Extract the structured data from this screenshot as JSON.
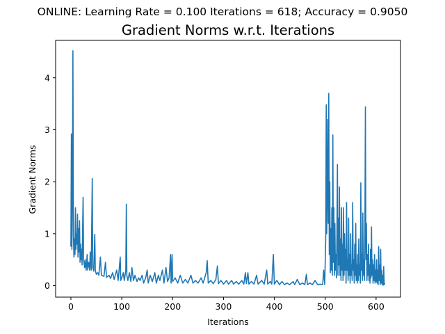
{
  "chart_data": {
    "type": "line",
    "suptitle": "ONLINE: Learning Rate = 0.100 Iterations = 618; Accuracy = 0.9050",
    "title": "Gradient Norms w.r.t. Iterations",
    "xlabel": "Iterations",
    "ylabel": "Gradient Norms",
    "xlim": [
      -30,
      648
    ],
    "ylim": [
      -0.22,
      4.72
    ],
    "xticks": [
      0,
      100,
      200,
      300,
      400,
      500,
      600
    ],
    "yticks": [
      0,
      1,
      2,
      3,
      4
    ],
    "grid": false,
    "color": "#1f77b4",
    "series": [
      {
        "points": [
          [
            0,
            0.75
          ],
          [
            1,
            2.92
          ],
          [
            2,
            0.7
          ],
          [
            3,
            1.85
          ],
          [
            4,
            4.52
          ],
          [
            5,
            0.98
          ],
          [
            6,
            0.55
          ],
          [
            7,
            0.9
          ],
          [
            8,
            0.6
          ],
          [
            9,
            1.5
          ],
          [
            10,
            0.7
          ],
          [
            11,
            1.0
          ],
          [
            12,
            0.8
          ],
          [
            13,
            1.38
          ],
          [
            14,
            0.55
          ],
          [
            15,
            1.1
          ],
          [
            16,
            0.65
          ],
          [
            17,
            1.25
          ],
          [
            18,
            0.45
          ],
          [
            19,
            0.8
          ],
          [
            20,
            0.5
          ],
          [
            21,
            0.7
          ],
          [
            22,
            0.4
          ],
          [
            24,
            1.7
          ],
          [
            25,
            0.5
          ],
          [
            27,
            0.35
          ],
          [
            28,
            0.5
          ],
          [
            30,
            0.3
          ],
          [
            32,
            0.6
          ],
          [
            33,
            0.3
          ],
          [
            35,
            0.45
          ],
          [
            37,
            0.3
          ],
          [
            38,
            0.65
          ],
          [
            40,
            0.3
          ],
          [
            42,
            2.06
          ],
          [
            43,
            0.35
          ],
          [
            45,
            0.28
          ],
          [
            47,
            0.99
          ],
          [
            48,
            0.3
          ],
          [
            50,
            0.22
          ],
          [
            53,
            0.25
          ],
          [
            55,
            0.2
          ],
          [
            58,
            0.55
          ],
          [
            60,
            0.2
          ],
          [
            65,
            0.18
          ],
          [
            68,
            0.45
          ],
          [
            70,
            0.16
          ],
          [
            75,
            0.2
          ],
          [
            78,
            0.14
          ],
          [
            82,
            0.25
          ],
          [
            85,
            0.12
          ],
          [
            90,
            0.3
          ],
          [
            93,
            0.1
          ],
          [
            97,
            0.55
          ],
          [
            98,
            0.1
          ],
          [
            100,
            0.15
          ],
          [
            103,
            0.25
          ],
          [
            105,
            0.1
          ],
          [
            108,
            0.3
          ],
          [
            109,
            1.57
          ],
          [
            110,
            0.2
          ],
          [
            112,
            0.1
          ],
          [
            115,
            0.25
          ],
          [
            118,
            0.08
          ],
          [
            120,
            0.35
          ],
          [
            123,
            0.1
          ],
          [
            126,
            0.2
          ],
          [
            130,
            0.08
          ],
          [
            133,
            0.15
          ],
          [
            136,
            0.1
          ],
          [
            140,
            0.2
          ],
          [
            143,
            0.05
          ],
          [
            147,
            0.15
          ],
          [
            150,
            0.3
          ],
          [
            152,
            0.05
          ],
          [
            156,
            0.2
          ],
          [
            160,
            0.08
          ],
          [
            165,
            0.25
          ],
          [
            168,
            0.05
          ],
          [
            172,
            0.2
          ],
          [
            175,
            0.1
          ],
          [
            180,
            0.3
          ],
          [
            183,
            0.05
          ],
          [
            187,
            0.35
          ],
          [
            190,
            0.08
          ],
          [
            193,
            0.15
          ],
          [
            196,
            0.6
          ],
          [
            197,
            0.05
          ],
          [
            199,
            0.6
          ],
          [
            200,
            0.08
          ],
          [
            205,
            0.15
          ],
          [
            210,
            0.05
          ],
          [
            215,
            0.2
          ],
          [
            220,
            0.05
          ],
          [
            225,
            0.12
          ],
          [
            230,
            0.05
          ],
          [
            236,
            0.2
          ],
          [
            240,
            0.05
          ],
          [
            245,
            0.1
          ],
          [
            250,
            0.05
          ],
          [
            256,
            0.15
          ],
          [
            260,
            0.05
          ],
          [
            266,
            0.25
          ],
          [
            268,
            0.48
          ],
          [
            270,
            0.05
          ],
          [
            275,
            0.1
          ],
          [
            280,
            0.04
          ],
          [
            285,
            0.12
          ],
          [
            288,
            0.38
          ],
          [
            290,
            0.04
          ],
          [
            295,
            0.1
          ],
          [
            300,
            0.03
          ],
          [
            306,
            0.1
          ],
          [
            310,
            0.03
          ],
          [
            316,
            0.1
          ],
          [
            320,
            0.03
          ],
          [
            325,
            0.08
          ],
          [
            330,
            0.03
          ],
          [
            336,
            0.1
          ],
          [
            340,
            0.03
          ],
          [
            343,
            0.25
          ],
          [
            345,
            0.04
          ],
          [
            348,
            0.25
          ],
          [
            350,
            0.03
          ],
          [
            355,
            0.08
          ],
          [
            360,
            0.03
          ],
          [
            365,
            0.2
          ],
          [
            368,
            0.03
          ],
          [
            375,
            0.1
          ],
          [
            380,
            0.03
          ],
          [
            385,
            0.3
          ],
          [
            387,
            0.03
          ],
          [
            392,
            0.08
          ],
          [
            395,
            0.03
          ],
          [
            398,
            0.6
          ],
          [
            400,
            0.03
          ],
          [
            405,
            0.1
          ],
          [
            410,
            0.02
          ],
          [
            415,
            0.08
          ],
          [
            420,
            0.02
          ],
          [
            425,
            0.05
          ],
          [
            430,
            0.02
          ],
          [
            437,
            0.08
          ],
          [
            440,
            0.02
          ],
          [
            445,
            0.12
          ],
          [
            450,
            0.02
          ],
          [
            455,
            0.05
          ],
          [
            460,
            0.02
          ],
          [
            463,
            0.22
          ],
          [
            465,
            0.02
          ],
          [
            470,
            0.05
          ],
          [
            475,
            0.02
          ],
          [
            480,
            0.1
          ],
          [
            485,
            0.02
          ],
          [
            490,
            0.03
          ],
          [
            495,
            0.02
          ],
          [
            497,
            0.3
          ],
          [
            499,
            0.02
          ],
          [
            501,
            0.9
          ],
          [
            502,
            3.48
          ],
          [
            503,
            1.0
          ],
          [
            504,
            1.85
          ],
          [
            505,
            3.2
          ],
          [
            506,
            1.2
          ],
          [
            507,
            3.7
          ],
          [
            508,
            0.6
          ],
          [
            509,
            2.0
          ],
          [
            510,
            0.25
          ],
          [
            511,
            1.1
          ],
          [
            512,
            0.3
          ],
          [
            513,
            1.5
          ],
          [
            514,
            0.2
          ],
          [
            515,
            2.9
          ],
          [
            516,
            0.45
          ],
          [
            517,
            1.5
          ],
          [
            518,
            0.2
          ],
          [
            519,
            1.2
          ],
          [
            520,
            0.3
          ],
          [
            521,
            0.6
          ],
          [
            522,
            0.15
          ],
          [
            523,
            1.0
          ],
          [
            524,
            2.33
          ],
          [
            525,
            0.2
          ],
          [
            526,
            1.3
          ],
          [
            527,
            0.4
          ],
          [
            528,
            1.9
          ],
          [
            529,
            0.2
          ],
          [
            530,
            0.9
          ],
          [
            531,
            0.1
          ],
          [
            532,
            1.5
          ],
          [
            533,
            0.3
          ],
          [
            534,
            0.8
          ],
          [
            535,
            0.1
          ],
          [
            536,
            1.5
          ],
          [
            537,
            0.2
          ],
          [
            538,
            1.0
          ],
          [
            539,
            0.3
          ],
          [
            540,
            0.7
          ],
          [
            541,
            0.05
          ],
          [
            542,
            1.6
          ],
          [
            543,
            0.3
          ],
          [
            544,
            0.5
          ],
          [
            545,
            0.1
          ],
          [
            546,
            1.3
          ],
          [
            547,
            0.2
          ],
          [
            548,
            0.6
          ],
          [
            549,
            0.05
          ],
          [
            550,
            1.0
          ],
          [
            551,
            0.2
          ],
          [
            552,
            0.4
          ],
          [
            553,
            0.1
          ],
          [
            554,
            1.6
          ],
          [
            555,
            0.3
          ],
          [
            556,
            0.5
          ],
          [
            557,
            0.05
          ],
          [
            558,
            0.8
          ],
          [
            559,
            0.2
          ],
          [
            560,
            1.2
          ],
          [
            561,
            0.1
          ],
          [
            562,
            0.4
          ],
          [
            563,
            0.05
          ],
          [
            564,
            0.6
          ],
          [
            565,
            0.1
          ],
          [
            566,
            0.9
          ],
          [
            567,
            0.2
          ],
          [
            568,
            0.4
          ],
          [
            569,
            0.05
          ],
          [
            570,
            1.98
          ],
          [
            571,
            0.3
          ],
          [
            572,
            0.6
          ],
          [
            573,
            0.1
          ],
          [
            574,
            1.4
          ],
          [
            575,
            0.2
          ],
          [
            576,
            0.5
          ],
          [
            577,
            0.1
          ],
          [
            578,
            1.0
          ],
          [
            579,
            3.44
          ],
          [
            580,
            0.5
          ],
          [
            581,
            1.2
          ],
          [
            582,
            0.1
          ],
          [
            583,
            0.6
          ],
          [
            584,
            0.2
          ],
          [
            585,
            0.8
          ],
          [
            586,
            0.1
          ],
          [
            587,
            0.4
          ],
          [
            588,
            0.05
          ],
          [
            589,
            0.7
          ],
          [
            590,
            0.15
          ],
          [
            591,
            1.13
          ],
          [
            592,
            0.2
          ],
          [
            593,
            0.5
          ],
          [
            594,
            0.05
          ],
          [
            595,
            0.4
          ],
          [
            596,
            0.1
          ],
          [
            597,
            0.6
          ],
          [
            598,
            0.05
          ],
          [
            599,
            0.3
          ],
          [
            600,
            0.08
          ],
          [
            601,
            0.5
          ],
          [
            602,
            0.05
          ],
          [
            603,
            0.3
          ],
          [
            604,
            0.02
          ],
          [
            605,
            0.75
          ],
          [
            606,
            0.1
          ],
          [
            607,
            0.4
          ],
          [
            608,
            0.02
          ],
          [
            609,
            0.7
          ],
          [
            610,
            0.05
          ],
          [
            611,
            0.3
          ],
          [
            612,
            0.02
          ],
          [
            613,
            0.2
          ],
          [
            614,
            0.01
          ],
          [
            615,
            0.37
          ],
          [
            616,
            0.02
          ],
          [
            617,
            0.05
          ]
        ]
      }
    ]
  }
}
